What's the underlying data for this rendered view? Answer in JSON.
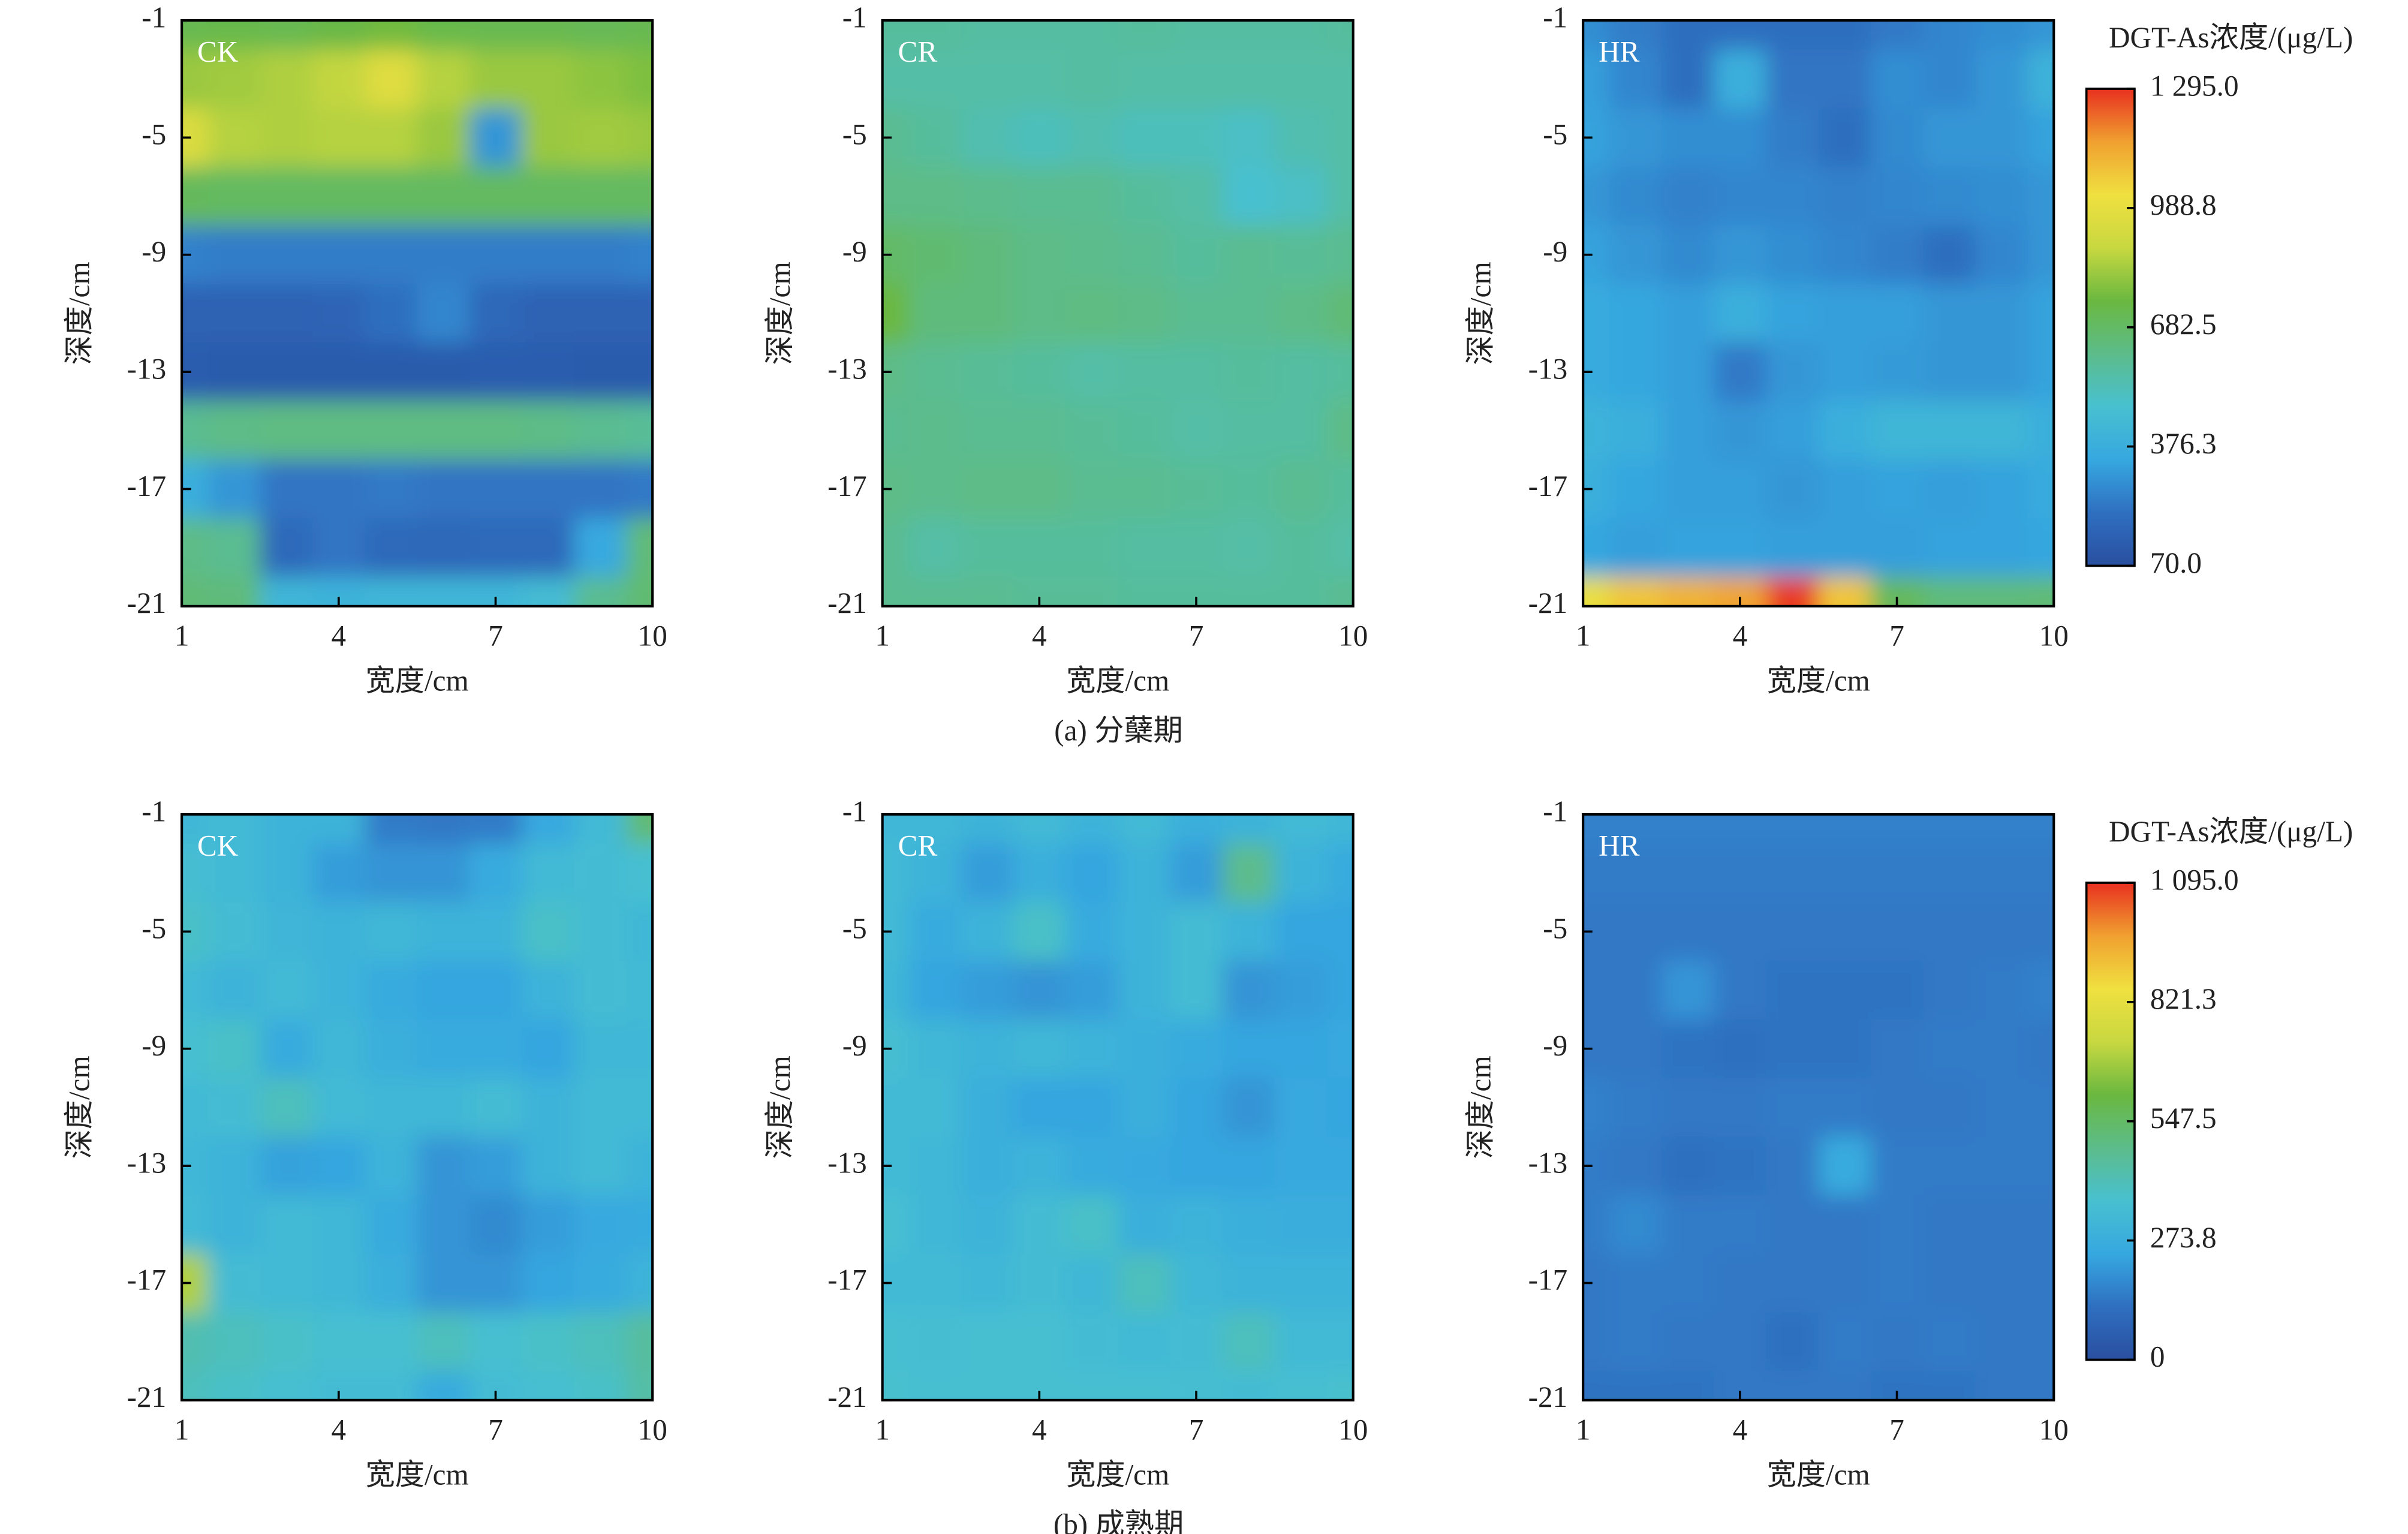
{
  "chart_data": [
    {
      "type": "heatmap",
      "caption": "(a) 分蘖期",
      "xlabel": "宽度/cm",
      "ylabel": "深度/cm",
      "x": [
        1,
        2,
        3,
        4,
        5,
        6,
        7,
        8,
        9,
        10
      ],
      "y": [
        -1,
        -3,
        -5,
        -7,
        -9,
        -11,
        -13,
        -15,
        -17,
        -19,
        -21
      ],
      "xlim": [
        1,
        10
      ],
      "ylim": [
        -21,
        -1
      ],
      "xticks": [
        1,
        4,
        7,
        10
      ],
      "yticks": [
        -1,
        -5,
        -9,
        -13,
        -17,
        -21
      ],
      "colorscale": [
        "#2a4fa0",
        "#2f6fc0",
        "#36a8e0",
        "#48c0d0",
        "#5cbc8a",
        "#6ab840",
        "#c8d840",
        "#f0e040",
        "#f0a030",
        "#e83020"
      ],
      "colorbar": {
        "title": "DGT-As浓度/(μg/L)",
        "lim": [
          70,
          1295
        ],
        "ticks": [
          {
            "value": 70,
            "label": "70.0"
          },
          376.3,
          682.5,
          988.8,
          {
            "value": 1295,
            "label": "1 295.0"
          }
        ]
      },
      "panels": [
        {
          "label": "CK",
          "z": [
            [
              720,
              730,
              720,
              740,
              760,
              730,
              720,
              720,
              710,
              720
            ],
            [
              820,
              830,
              850,
              880,
              960,
              860,
              820,
              820,
              800,
              780
            ],
            [
              950,
              860,
              850,
              860,
              860,
              820,
              300,
              820,
              830,
              820
            ],
            [
              700,
              690,
              690,
              690,
              690,
              690,
              690,
              690,
              690,
              690
            ],
            [
              250,
              240,
              240,
              240,
              240,
              240,
              240,
              240,
              240,
              250
            ],
            [
              150,
              150,
              150,
              160,
              200,
              260,
              170,
              150,
              150,
              150
            ],
            [
              130,
              120,
              120,
              120,
              120,
              120,
              130,
              130,
              120,
              120
            ],
            [
              600,
              620,
              630,
              630,
              630,
              630,
              630,
              620,
              600,
              590
            ],
            [
              380,
              300,
              220,
              220,
              230,
              220,
              220,
              220,
              220,
              230
            ],
            [
              620,
              600,
              180,
              220,
              180,
              170,
              180,
              180,
              350,
              650
            ],
            [
              650,
              640,
              420,
              400,
              420,
              420,
              420,
              450,
              600,
              660
            ]
          ]
        },
        {
          "label": "CR",
          "z": [
            [
              580,
              580,
              570,
              570,
              570,
              580,
              570,
              570,
              570,
              580
            ],
            [
              560,
              560,
              560,
              560,
              570,
              560,
              560,
              560,
              560,
              560
            ],
            [
              600,
              580,
              540,
              520,
              540,
              520,
              520,
              500,
              540,
              560
            ],
            [
              620,
              620,
              610,
              600,
              600,
              580,
              560,
              480,
              500,
              560
            ],
            [
              680,
              660,
              640,
              620,
              610,
              600,
              580,
              600,
              590,
              600
            ],
            [
              750,
              640,
              640,
              620,
              630,
              620,
              600,
              600,
              620,
              650
            ],
            [
              620,
              600,
              590,
              580,
              560,
              570,
              570,
              580,
              570,
              580
            ],
            [
              600,
              610,
              600,
              600,
              590,
              580,
              560,
              570,
              570,
              620
            ],
            [
              620,
              610,
              620,
              620,
              600,
              600,
              590,
              580,
              600,
              580
            ],
            [
              600,
              560,
              580,
              580,
              580,
              570,
              570,
              560,
              580,
              560
            ],
            [
              600,
              600,
              600,
              590,
              590,
              580,
              580,
              580,
              580,
              600
            ]
          ]
        },
        {
          "label": "HR",
          "z": [
            [
              280,
              240,
              200,
              200,
              200,
              200,
              230,
              260,
              280,
              300
            ],
            [
              320,
              260,
              200,
              380,
              220,
              220,
              280,
              260,
              300,
              400
            ],
            [
              330,
              300,
              280,
              280,
              240,
              200,
              270,
              300,
              300,
              330
            ],
            [
              300,
              270,
              250,
              260,
              260,
              250,
              260,
              270,
              280,
              300
            ],
            [
              330,
              300,
              270,
              300,
              280,
              260,
              240,
              200,
              260,
              300
            ],
            [
              360,
              340,
              320,
              380,
              330,
              320,
              320,
              300,
              300,
              330
            ],
            [
              360,
              340,
              320,
              230,
              300,
              320,
              310,
              300,
              300,
              330
            ],
            [
              400,
              380,
              320,
              300,
              320,
              380,
              420,
              420,
              420,
              380
            ],
            [
              380,
              340,
              320,
              320,
              300,
              320,
              330,
              320,
              330,
              360
            ],
            [
              340,
              320,
              330,
              330,
              320,
              320,
              320,
              330,
              330,
              340
            ],
            [
              1000,
              1080,
              1120,
              1150,
              1280,
              1080,
              700,
              640,
              640,
              650
            ]
          ]
        }
      ]
    },
    {
      "type": "heatmap",
      "caption": "(b) 成熟期",
      "xlabel": "宽度/cm",
      "ylabel": "深度/cm",
      "x": [
        1,
        2,
        3,
        4,
        5,
        6,
        7,
        8,
        9,
        10
      ],
      "y": [
        -1,
        -3,
        -5,
        -7,
        -9,
        -11,
        -13,
        -15,
        -17,
        -19,
        -21
      ],
      "xlim": [
        1,
        10
      ],
      "ylim": [
        -21,
        -1
      ],
      "xticks": [
        1,
        4,
        7,
        10
      ],
      "yticks": [
        -1,
        -5,
        -9,
        -13,
        -17,
        -21
      ],
      "colorscale": [
        "#2a4fa0",
        "#2f6fc0",
        "#36a8e0",
        "#48c0d0",
        "#5cbc8a",
        "#6ab840",
        "#c8d840",
        "#f0e040",
        "#f0a030",
        "#e83020"
      ],
      "colorbar": {
        "title": "DGT-As浓度/(μg/L)",
        "lim": [
          0,
          1095
        ],
        "ticks": [
          0,
          273.8,
          547.5,
          821.3,
          {
            "value": 1095,
            "label": "1 095.0"
          }
        ]
      },
      "panels": [
        {
          "label": "CK",
          "z": [
            [
              320,
              330,
              300,
              300,
              150,
              140,
              150,
              250,
              330,
              520
            ],
            [
              350,
              330,
              300,
              220,
              200,
              200,
              260,
              330,
              340,
              360
            ],
            [
              380,
              340,
              310,
              300,
              320,
              300,
              300,
              380,
              340,
              320
            ],
            [
              330,
              300,
              330,
              300,
              260,
              240,
              240,
              300,
              340,
              330
            ],
            [
              360,
              380,
              260,
              320,
              280,
              260,
              260,
              240,
              320,
              320
            ],
            [
              330,
              340,
              400,
              330,
              320,
              320,
              340,
              300,
              330,
              330
            ],
            [
              320,
              300,
              230,
              240,
              300,
              200,
              220,
              300,
              330,
              300
            ],
            [
              330,
              300,
              330,
              320,
              260,
              200,
              180,
              220,
              250,
              260
            ],
            [
              700,
              340,
              330,
              320,
              280,
              200,
              200,
              240,
              260,
              300
            ],
            [
              420,
              400,
              380,
              360,
              360,
              400,
              360,
              380,
              400,
              450
            ],
            [
              400,
              380,
              360,
              340,
              340,
              260,
              340,
              360,
              380,
              440
            ]
          ]
        },
        {
          "label": "CR",
          "z": [
            [
              320,
              320,
              300,
              330,
              300,
              330,
              280,
              300,
              330,
              320
            ],
            [
              330,
              300,
              220,
              280,
              240,
              300,
              220,
              480,
              300,
              260
            ],
            [
              330,
              260,
              300,
              380,
              260,
              300,
              340,
              300,
              240,
              240
            ],
            [
              320,
              240,
              220,
              200,
              220,
              300,
              340,
              200,
              220,
              240
            ],
            [
              350,
              320,
              300,
              320,
              300,
              280,
              260,
              240,
              240,
              250
            ],
            [
              330,
              330,
              280,
              240,
              240,
              280,
              240,
              200,
              250,
              240
            ],
            [
              330,
              320,
              280,
              300,
              260,
              250,
              240,
              240,
              250,
              250
            ],
            [
              360,
              320,
              300,
              340,
              380,
              280,
              300,
              280,
              270,
              270
            ],
            [
              330,
              330,
              320,
              340,
              320,
              400,
              320,
              300,
              300,
              300
            ],
            [
              360,
              350,
              360,
              360,
              340,
              330,
              340,
              400,
              330,
              330
            ],
            [
              370,
              360,
              360,
              360,
              360,
              360,
              350,
              340,
              360,
              370
            ]
          ]
        },
        {
          "label": "HR",
          "z": [
            [
              160,
              160,
              160,
              160,
              160,
              160,
              160,
              160,
              160,
              160
            ],
            [
              150,
              150,
              150,
              150,
              150,
              150,
              150,
              150,
              150,
              150
            ],
            [
              140,
              140,
              140,
              140,
              140,
              140,
              140,
              140,
              140,
              140
            ],
            [
              140,
              140,
              200,
              140,
              130,
              130,
              130,
              140,
              150,
              160
            ],
            [
              140,
              140,
              130,
              120,
              130,
              130,
              140,
              150,
              150,
              140
            ],
            [
              160,
              150,
              140,
              140,
              150,
              150,
              140,
              140,
              150,
              150
            ],
            [
              150,
              140,
              120,
              130,
              140,
              260,
              150,
              150,
              150,
              150
            ],
            [
              150,
              180,
              150,
              150,
              140,
              140,
              150,
              140,
              140,
              140
            ],
            [
              140,
              150,
              150,
              140,
              140,
              140,
              150,
              140,
              140,
              140
            ],
            [
              140,
              150,
              140,
              140,
              120,
              150,
              140,
              150,
              140,
              140
            ],
            [
              130,
              130,
              130,
              140,
              140,
              140,
              130,
              130,
              140,
              140
            ]
          ]
        }
      ]
    }
  ]
}
